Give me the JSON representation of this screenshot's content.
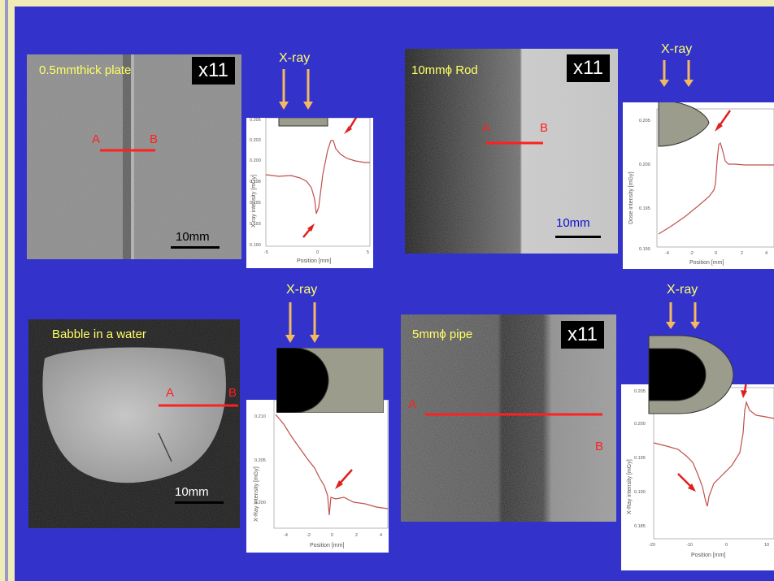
{
  "panels": {
    "plate": {
      "caption": "0.5mmthick plate",
      "magnification": "x11",
      "point_a": "A",
      "point_b": "B",
      "scale": "10mm"
    },
    "rod": {
      "caption": "10mmϕ Rod",
      "magnification": "x11",
      "point_a": "A",
      "point_b": "B",
      "scale": "10mm"
    },
    "bubble": {
      "caption": "Babble in a water",
      "point_a": "A",
      "point_b": "B",
      "scale": "10mm"
    },
    "pipe": {
      "caption": "5mmϕ pipe",
      "magnification": "x11",
      "point_a": "A",
      "point_b": "B"
    }
  },
  "xray_label": "X-ray",
  "plots": {
    "plate": {
      "ylabel": "X-ray intensity [mGy]",
      "xlabel": "Position [mm]",
      "yticks": [
        "0.205",
        "0.203",
        "0.200",
        "0.198",
        "0.195",
        "0.193",
        "0.190"
      ],
      "xticks": [
        "-5",
        "0",
        "5"
      ]
    },
    "rod": {
      "ylabel": "Dose intensity [mGy]",
      "xlabel": "Position  [mm]",
      "yticks": [
        "0.205",
        "0.200",
        "0.195",
        "0.190"
      ],
      "xticks": [
        "-4",
        "-2",
        "0",
        "2",
        "4"
      ]
    },
    "bubble": {
      "ylabel": "X-Ray intensity [mGy]",
      "xlabel": "Position [mm]",
      "yticks": [
        "0.210",
        "0.205",
        "0.200"
      ],
      "xticks": [
        "-4",
        "-2",
        "0",
        "2",
        "4"
      ]
    },
    "pipe": {
      "ylabel": "X-Ray intensity [mGy]",
      "xlabel": "Position [mm]",
      "yticks": [
        "0.205",
        "0.200",
        "0.195",
        "0.190",
        "0.185"
      ],
      "xticks": [
        "-20",
        "-10",
        "0",
        "10"
      ]
    }
  },
  "colors": {
    "background": "#3333cc",
    "caption": "#ffff66",
    "marker": "#ff2020",
    "arrow": "#f4b860",
    "shape": "#9c9c8c"
  }
}
